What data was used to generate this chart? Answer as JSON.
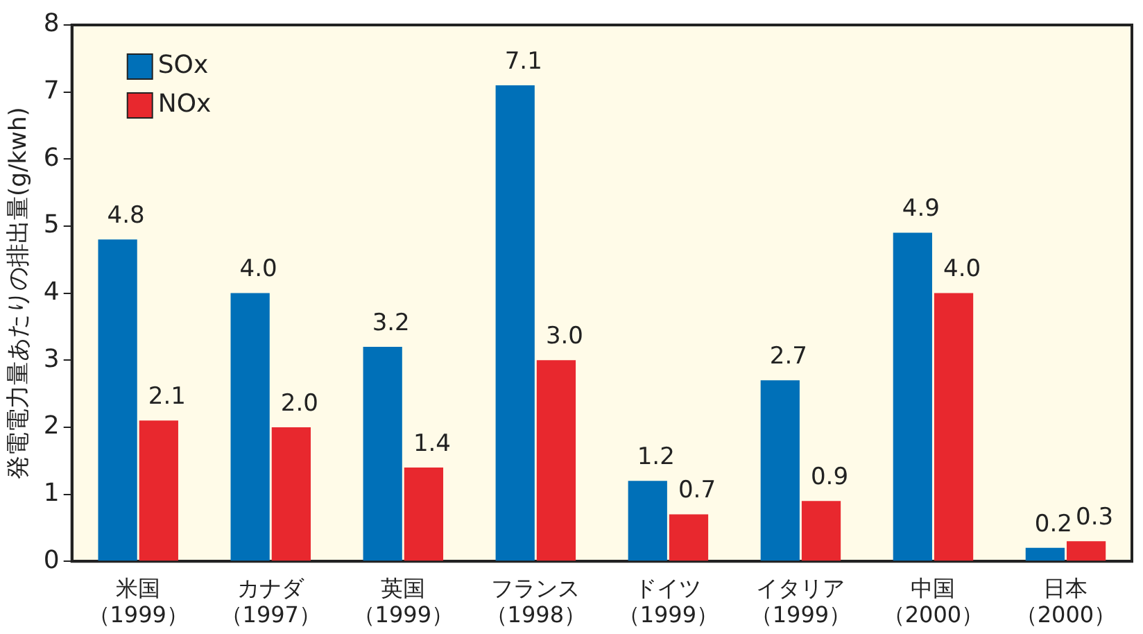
{
  "chart_data": {
    "type": "bar",
    "ylabel": "発電電力量あたりの排出量(g/kwh)",
    "categories": [
      "米国（1999）",
      "カナダ（1997）",
      "英国（1999）",
      "フランス（1998）",
      "ドイツ（1999）",
      "イタリア（1999）",
      "中国（2000）",
      "日本（2000）"
    ],
    "series": [
      {
        "name": "SOx",
        "color": "#0070b8",
        "values": [
          4.8,
          4.0,
          3.2,
          7.1,
          1.2,
          2.7,
          4.9,
          0.2
        ],
        "value_labels": [
          "4.8",
          "4.0",
          "3.2",
          "7.1",
          "1.2",
          "2.7",
          "4.9",
          "0.2"
        ]
      },
      {
        "name": "NOx",
        "color": "#e8282e",
        "values": [
          2.1,
          2.0,
          1.4,
          3.0,
          0.7,
          0.9,
          4.0,
          0.3
        ],
        "value_labels": [
          "2.1",
          "2.0",
          "1.4",
          "3.0",
          "0.7",
          "0.9",
          "4.0",
          "0.3"
        ]
      }
    ],
    "ylim": [
      0,
      8
    ],
    "yticks": [
      0,
      1,
      2,
      3,
      4,
      5,
      6,
      7,
      8
    ],
    "grid": false,
    "legend": "top left"
  }
}
